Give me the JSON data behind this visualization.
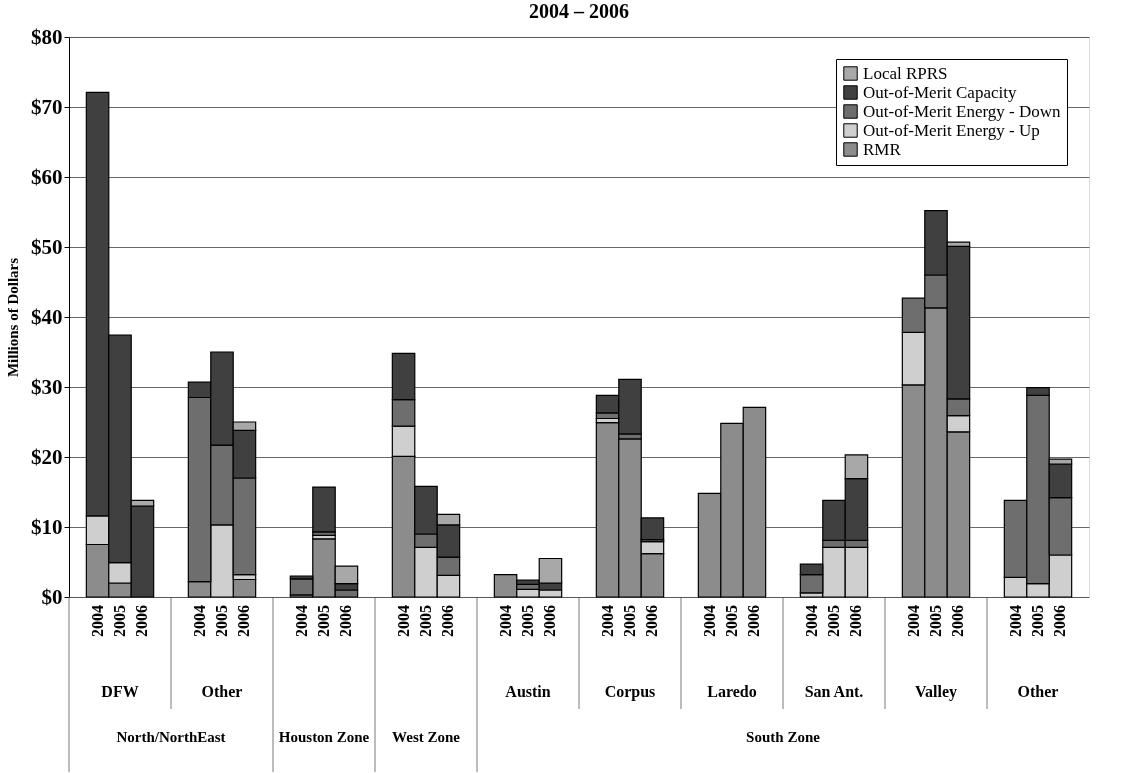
{
  "chart_data": {
    "type": "bar",
    "stacked": true,
    "title": "2004 – 2006",
    "ylabel": "Millions of Dollars",
    "categories": [
      "2004",
      "2005",
      "2006",
      "2004",
      "2005",
      "2006",
      "2004",
      "2005",
      "2006",
      "2004",
      "2005",
      "2006",
      "2004",
      "2005",
      "2006",
      "2004",
      "2005",
      "2006",
      "2004",
      "2005",
      "2006",
      "2004",
      "2005",
      "2006",
      "2004",
      "2005",
      "2006",
      "2004",
      "2005",
      "2006"
    ],
    "series": [
      {
        "name": "RMR",
        "color": "#8c8c8c",
        "values": [
          7.5,
          2.0,
          null,
          2.2,
          null,
          2.5,
          0.3,
          8.3,
          null,
          20.1,
          null,
          null,
          3.2,
          null,
          null,
          24.9,
          22.6,
          6.2,
          14.8,
          24.8,
          27.1,
          null,
          null,
          null,
          30.3,
          41.3,
          23.6,
          null,
          null,
          null
        ]
      },
      {
        "name": "Out-of-Merit Energy - Up",
        "color": "#cfcfcf",
        "values": [
          4.1,
          2.9,
          null,
          null,
          10.3,
          0.7,
          null,
          0.5,
          null,
          4.3,
          7.1,
          3.1,
          null,
          1.1,
          1.0,
          0.6,
          null,
          1.7,
          null,
          null,
          null,
          0.6,
          7.1,
          7.1,
          7.5,
          null,
          2.3,
          2.8,
          1.9,
          6.0
        ]
      },
      {
        "name": "Out-of-Merit Energy - Down",
        "color": "#6e6e6e",
        "values": [
          null,
          null,
          null,
          26.3,
          11.4,
          13.8,
          2.3,
          0.5,
          1.0,
          3.8,
          1.9,
          2.6,
          null,
          0.7,
          null,
          0.8,
          0.7,
          0.3,
          null,
          null,
          null,
          2.6,
          1.0,
          1.0,
          4.9,
          4.7,
          2.4,
          11.0,
          26.9,
          8.2
        ]
      },
      {
        "name": "Out-of-Merit Capacity",
        "color": "#404040",
        "values": [
          60.5,
          32.5,
          13.0,
          2.2,
          13.3,
          6.8,
          0.4,
          6.4,
          0.9,
          6.6,
          6.8,
          4.6,
          null,
          0.6,
          1.0,
          2.5,
          7.8,
          3.1,
          null,
          null,
          null,
          1.5,
          5.7,
          8.8,
          null,
          9.2,
          21.8,
          null,
          1.1,
          4.8
        ]
      },
      {
        "name": "Local RPRS",
        "color": "#a8a8a8",
        "values": [
          null,
          null,
          0.8,
          null,
          null,
          1.2,
          null,
          null,
          2.5,
          null,
          null,
          1.5,
          null,
          null,
          3.5,
          null,
          null,
          null,
          null,
          null,
          null,
          null,
          null,
          3.4,
          null,
          null,
          0.6,
          null,
          null,
          0.7
        ]
      }
    ],
    "ylim": [
      0,
      80
    ],
    "yticks": [
      {
        "value": 0,
        "label": "$0"
      },
      {
        "value": 10,
        "label": "$10"
      },
      {
        "value": 20,
        "label": "$20"
      },
      {
        "value": 30,
        "label": "$30"
      },
      {
        "value": 40,
        "label": "$40"
      },
      {
        "value": 50,
        "label": "$50"
      },
      {
        "value": 60,
        "label": "$60"
      },
      {
        "value": 70,
        "label": "$70"
      },
      {
        "value": 80,
        "label": "$80"
      }
    ],
    "grid": "y",
    "legend": "top right",
    "annotations": [
      "DFW",
      "Other",
      "Austin",
      "Corpus",
      "Laredo",
      "San Ant.",
      "Valley",
      "Other",
      "North/NorthEast",
      "Houston Zone",
      "West Zone",
      "South Zone"
    ]
  }
}
